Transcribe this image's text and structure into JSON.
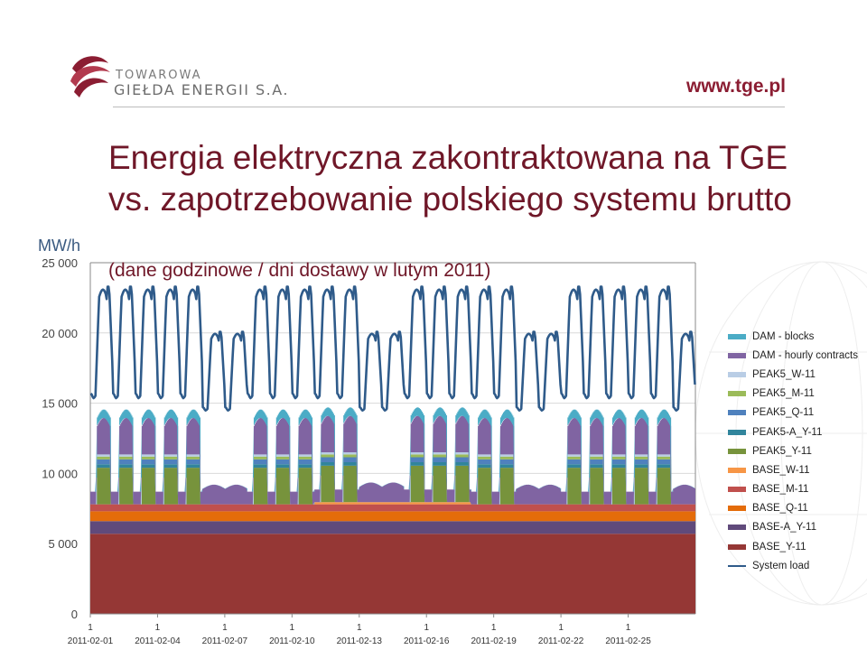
{
  "header": {
    "logo_line1": "TOWAROWA",
    "logo_line2": "GIEŁDA ENERGII S.A.",
    "url": "www.tge.pl"
  },
  "slide": {
    "title": "Energia elektryczna zakontraktowana na TGE vs. zapotrzebowanie polskiego systemu brutto",
    "subtitle": "(dane godzinowe / dni dostawy  w lutym 2011)"
  },
  "chart_data": {
    "type": "area",
    "ylabel": "MW/h",
    "ylim": [
      0,
      25000
    ],
    "yticks": [
      0,
      5000,
      10000,
      15000,
      20000,
      25000
    ],
    "ytick_labels": [
      "0",
      "5 000",
      "10 000",
      "15 000",
      "20 000",
      "25 000"
    ],
    "x_hour_labels": [
      "1",
      "1",
      "1",
      "1",
      "1",
      "1",
      "1",
      "1",
      "1"
    ],
    "x_date_labels": [
      "2011-02-01",
      "2011-02-04",
      "2011-02-07",
      "2011-02-10",
      "2011-02-13",
      "2011-02-16",
      "2011-02-19",
      "2011-02-22",
      "2011-02-25"
    ],
    "days": 27,
    "weekend_days": [
      5,
      6,
      12,
      13,
      19,
      20,
      26
    ],
    "base_stack": [
      {
        "name": "BASE_Y-11",
        "color": "#953735",
        "value": 5700
      },
      {
        "name": "BASE-A_Y-11",
        "color": "#604a7b",
        "value": 900
      },
      {
        "name": "BASE_Q-11",
        "color": "#e46c0a",
        "value": 700
      },
      {
        "name": "BASE_M-11",
        "color": "#c0504d",
        "value": 500
      },
      {
        "name": "BASE_W-11",
        "color": "#f79646",
        "value": 150
      }
    ],
    "base_w_days": [
      10,
      17
    ],
    "peak_stack": [
      {
        "name": "PEAK5_Y-11",
        "color": "#77933c",
        "value": 2600
      },
      {
        "name": "PEAK5-A_Y-11",
        "color": "#31859c",
        "value": 250
      },
      {
        "name": "PEAK5_Q-11",
        "color": "#4f81bd",
        "value": 350
      },
      {
        "name": "PEAK5_M-11",
        "color": "#9bbb59",
        "value": 200
      },
      {
        "name": "PEAK5_W-11",
        "color": "#b9cde5",
        "value": 150
      }
    ],
    "hourly_contracts": {
      "name": "DAM - hourly contracts",
      "color": "#8064a2",
      "weekday_level": 1900,
      "night_level": 900,
      "weekday_peak_extra": 700,
      "weekend_level": 1100
    },
    "dam_blocks": {
      "name": "DAM - blocks",
      "color": "#4bacc6",
      "weekday_value": 600,
      "weekend_value": 0
    },
    "system_load": {
      "name": "System load",
      "color": "#2f5b8a",
      "weekday_min": 15100,
      "weekday_max": 23600,
      "weekend_min": 14300,
      "weekend_max": 20300
    },
    "legend": [
      "DAM - blocks",
      "DAM - hourly contracts",
      "PEAK5_W-11",
      "PEAK5_M-11",
      "PEAK5_Q-11",
      "PEAK5-A_Y-11",
      "PEAK5_Y-11",
      "BASE_W-11",
      "BASE_M-11",
      "BASE_Q-11",
      "BASE-A_Y-11",
      "BASE_Y-11",
      "System load"
    ],
    "legend_colors": [
      "#4bacc6",
      "#8064a2",
      "#b9cde5",
      "#9bbb59",
      "#4f81bd",
      "#31859c",
      "#77933c",
      "#f79646",
      "#c0504d",
      "#e46c0a",
      "#604a7b",
      "#953735",
      "#2f5b8a"
    ]
  }
}
